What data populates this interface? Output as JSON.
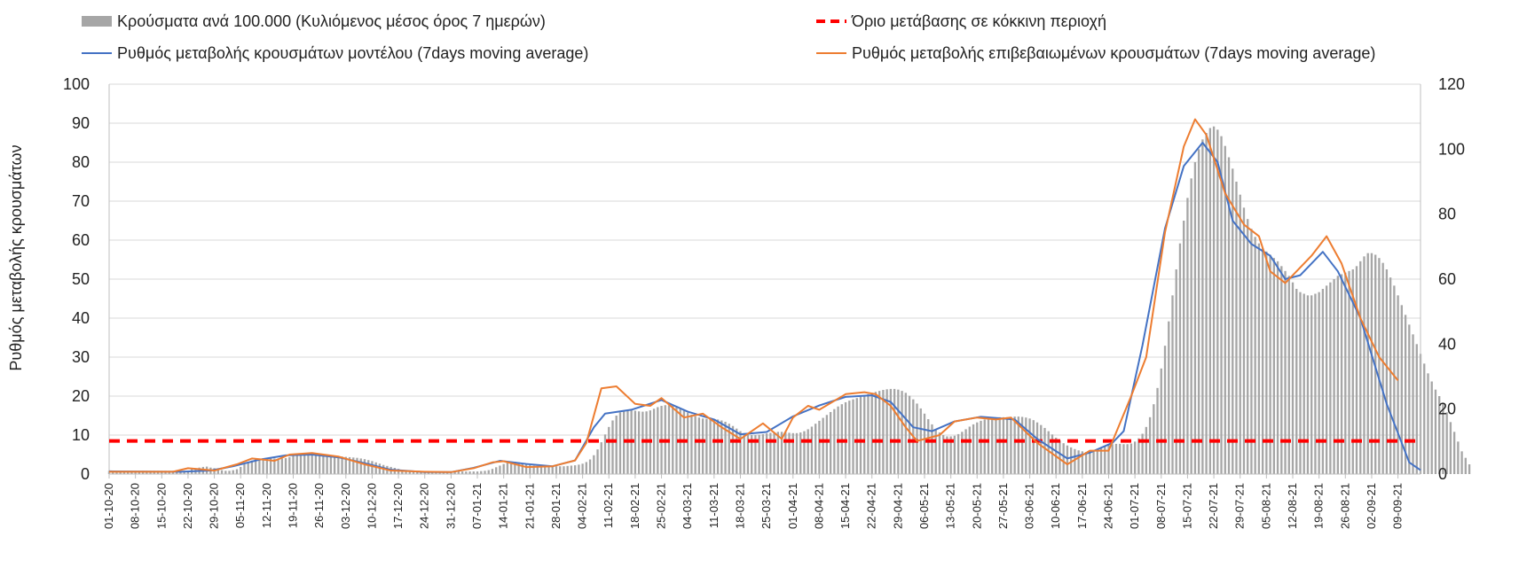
{
  "chart_data": {
    "type": "bar+line",
    "title": "",
    "ylabel": "Ρυθμός μεταβολής κρουσμάτων",
    "ylim": [
      0,
      100
    ],
    "y2lim": [
      0,
      120
    ],
    "yticks": [
      0,
      10,
      20,
      30,
      40,
      50,
      60,
      70,
      80,
      90,
      100
    ],
    "y2ticks": [
      0,
      20,
      40,
      60,
      80,
      100,
      120
    ],
    "grid": true,
    "legend_position": "top",
    "x_start": "2020-10-01",
    "x_end": "2021-09-15",
    "xtick_labels": [
      "01-10-20",
      "08-10-20",
      "15-10-20",
      "22-10-20",
      "29-10-20",
      "05-11-20",
      "12-11-20",
      "19-11-20",
      "26-11-20",
      "03-12-20",
      "10-12-20",
      "17-12-20",
      "24-12-20",
      "31-12-20",
      "07-01-21",
      "14-01-21",
      "21-01-21",
      "28-01-21",
      "04-02-21",
      "11-02-21",
      "18-02-21",
      "25-02-21",
      "04-03-21",
      "11-03-21",
      "18-03-21",
      "25-03-21",
      "01-04-21",
      "08-04-21",
      "15-04-21",
      "22-04-21",
      "29-04-21",
      "06-05-21",
      "13-05-21",
      "20-05-21",
      "27-05-21",
      "03-06-21",
      "10-06-21",
      "17-06-21",
      "24-06-21",
      "01-07-21",
      "08-07-21",
      "15-07-21",
      "22-07-21",
      "29-07-21",
      "05-08-21",
      "12-08-21",
      "19-08-21",
      "26-08-21",
      "02-09-21",
      "09-09-21"
    ],
    "series": [
      {
        "name": "Κρούσματα ανά 100.000 (Κυλιόμενος μέσος όρος 7 ημερών)",
        "kind": "bar",
        "axis": "y2",
        "color": "#a6a6a6",
        "start": "2020-10-01",
        "values": [
          1,
          1,
          1,
          1,
          1,
          1,
          1,
          1,
          1,
          1,
          1,
          1,
          1,
          1,
          1,
          1,
          1,
          1,
          1,
          1,
          1,
          1,
          1.5,
          1.8,
          2,
          2.2,
          2.3,
          2,
          1.8,
          1.5,
          1.2,
          1,
          1,
          1.2,
          1.5,
          2.2,
          3,
          3.6,
          4.2,
          4.6,
          4.8,
          4.9,
          5,
          4.9,
          4.8,
          4.7,
          4.8,
          4.9,
          5.2,
          5.6,
          5.9,
          6,
          6.1,
          6.2,
          6.2,
          6.1,
          6,
          5.9,
          5.8,
          5.7,
          5.6,
          5.5,
          5.4,
          5.3,
          5.2,
          5.1,
          5,
          4.8,
          4.6,
          4.3,
          4,
          3.6,
          3.2,
          2.8,
          2.5,
          2.2,
          1.9,
          1.6,
          1.3,
          1.1,
          1,
          0.9,
          0.8,
          0.8,
          0.8,
          0.8,
          0.8,
          0.8,
          0.8,
          0.8,
          0.8,
          0.8,
          0.8,
          0.8,
          0.8,
          0.8,
          0.8,
          0.8,
          0.8,
          0.9,
          1,
          1.2,
          1.6,
          2.1,
          2.6,
          3.1,
          3.5,
          3.8,
          3.8,
          3.6,
          3.3,
          3,
          2.8,
          2.6,
          2.5,
          2.4,
          2.4,
          2.4,
          2.4,
          2.4,
          2.4,
          2.4,
          2.5,
          2.6,
          2.7,
          2.9,
          3.2,
          3.7,
          4.5,
          5.8,
          7.6,
          9.8,
          12.2,
          14.5,
          16.5,
          18,
          19,
          19.4,
          19.6,
          19.6,
          19.5,
          19.3,
          19.2,
          19.3,
          19.6,
          20.1,
          20.6,
          21,
          21.2,
          21.2,
          21,
          20.6,
          20.1,
          19.5,
          18.9,
          18.3,
          17.8,
          17.4,
          17.1,
          17,
          17,
          16.9,
          16.8,
          16.5,
          16.1,
          15.5,
          14.8,
          14,
          13.2,
          12.6,
          12.2,
          12,
          12,
          12.1,
          12.3,
          12.5,
          12.7,
          12.9,
          13,
          13,
          12.9,
          12.7,
          12.6,
          12.6,
          12.8,
          13.2,
          13.8,
          14.6,
          15.5,
          16.4,
          17.3,
          18.2,
          19.1,
          20,
          20.8,
          21.5,
          22.1,
          22.6,
          23,
          23.4,
          23.8,
          24.2,
          24.6,
          25,
          25.3,
          25.6,
          25.9,
          26.1,
          26.2,
          26.2,
          26,
          25.6,
          25,
          24.1,
          23,
          21.7,
          20.2,
          18.6,
          16.9,
          15.3,
          13.9,
          12.8,
          12,
          11.6,
          11.6,
          11.8,
          12.3,
          13,
          13.8,
          14.6,
          15.3,
          15.9,
          16.4,
          16.8,
          17.1,
          17.3,
          17.4,
          17.5,
          17.5,
          17.5,
          17.6,
          17.7,
          17.7,
          17.6,
          17.4,
          17.1,
          16.6,
          15.9,
          15.1,
          14.2,
          13.2,
          12.2,
          11.2,
          10.3,
          9.5,
          8.8,
          8.2,
          7.7,
          7.3,
          7,
          6.8,
          6.8,
          7,
          7.5,
          8,
          8.5,
          8.9,
          9.2,
          9.3,
          9.3,
          9.2,
          9.2,
          9.4,
          10,
          11,
          12.4,
          14.5,
          17.5,
          21.5,
          26.5,
          32.5,
          39.5,
          47,
          55,
          63,
          71,
          78,
          85,
          91,
          96,
          100,
          103,
          105,
          106.5,
          107,
          106,
          104,
          101,
          97.5,
          94,
          90,
          86,
          82,
          78.5,
          75.5,
          73,
          71,
          69.5,
          68.5,
          67.5,
          66.5,
          65.5,
          64,
          62.5,
          61,
          59,
          57,
          56,
          55.5,
          55,
          55,
          55.5,
          56,
          57,
          58,
          59,
          60,
          61,
          61.5,
          62,
          62.5,
          63,
          64,
          65.5,
          67,
          68,
          68,
          67.5,
          66.5,
          65,
          63,
          60.5,
          58,
          55,
          52,
          49,
          46,
          43,
          40,
          37,
          34,
          31,
          28.5,
          26,
          24,
          22,
          19,
          16,
          13,
          10,
          7,
          5,
          3
        ]
      },
      {
        "name": "Όριο μετάβασης σε κόκκινη περιοχή",
        "kind": "threshold",
        "axis": "y",
        "color": "#ff0000",
        "value": 8.5
      },
      {
        "name": "Ρυθμός μεταβολής κρουσμάτων μοντέλου (7days moving average)",
        "kind": "line",
        "axis": "y",
        "color": "#4472c4",
        "points": [
          [
            "2020-10-01",
            0.7
          ],
          [
            "2020-10-20",
            0.6
          ],
          [
            "2020-10-28",
            0.9
          ],
          [
            "2020-11-03",
            2
          ],
          [
            "2020-11-10",
            3.7
          ],
          [
            "2020-11-17",
            4.8
          ],
          [
            "2020-11-24",
            5
          ],
          [
            "2020-12-01",
            4.3
          ],
          [
            "2020-12-08",
            2.8
          ],
          [
            "2020-12-15",
            1.1
          ],
          [
            "2020-12-24",
            0.5
          ],
          [
            "2020-12-31",
            0.5
          ],
          [
            "2021-01-06",
            1.6
          ],
          [
            "2021-01-13",
            3.4
          ],
          [
            "2021-01-20",
            2.6
          ],
          [
            "2021-01-27",
            2
          ],
          [
            "2021-02-02",
            3.5
          ],
          [
            "2021-02-07",
            12
          ],
          [
            "2021-02-10",
            15.5
          ],
          [
            "2021-02-17",
            16.5
          ],
          [
            "2021-02-25",
            19
          ],
          [
            "2021-03-04",
            16
          ],
          [
            "2021-03-11",
            14
          ],
          [
            "2021-03-18",
            10.2
          ],
          [
            "2021-03-25",
            10.8
          ],
          [
            "2021-04-01",
            14.8
          ],
          [
            "2021-04-08",
            17.6
          ],
          [
            "2021-04-15",
            19.8
          ],
          [
            "2021-04-22",
            20.2
          ],
          [
            "2021-04-27",
            18.5
          ],
          [
            "2021-05-03",
            12
          ],
          [
            "2021-05-08",
            11
          ],
          [
            "2021-05-14",
            13.5
          ],
          [
            "2021-05-21",
            14.7
          ],
          [
            "2021-05-30",
            14
          ],
          [
            "2021-06-05",
            9
          ],
          [
            "2021-06-13",
            4
          ],
          [
            "2021-06-19",
            5.5
          ],
          [
            "2021-06-25",
            8
          ],
          [
            "2021-06-28",
            11
          ],
          [
            "2021-07-03",
            33
          ],
          [
            "2021-07-09",
            63
          ],
          [
            "2021-07-14",
            79
          ],
          [
            "2021-07-19",
            85
          ],
          [
            "2021-07-23",
            80
          ],
          [
            "2021-07-27",
            65
          ],
          [
            "2021-08-01",
            59
          ],
          [
            "2021-08-06",
            56
          ],
          [
            "2021-08-10",
            50
          ],
          [
            "2021-08-14",
            51
          ],
          [
            "2021-08-20",
            57
          ],
          [
            "2021-08-24",
            52
          ],
          [
            "2021-08-30",
            40
          ],
          [
            "2021-09-06",
            18
          ],
          [
            "2021-09-12",
            3
          ],
          [
            "2021-09-15",
            1
          ]
        ]
      },
      {
        "name": "Ρυθμός μεταβολής επιβεβαιωμένων κρουσμάτων (7days moving average)",
        "kind": "line",
        "axis": "y",
        "color": "#ed7d31",
        "points": [
          [
            "2020-10-01",
            0.6
          ],
          [
            "2020-10-18",
            0.6
          ],
          [
            "2020-10-22",
            1.5
          ],
          [
            "2020-10-29",
            0.9
          ],
          [
            "2020-11-04",
            2.5
          ],
          [
            "2020-11-08",
            4
          ],
          [
            "2020-11-14",
            3.4
          ],
          [
            "2020-11-18",
            5
          ],
          [
            "2020-11-24",
            5.4
          ],
          [
            "2020-12-01",
            4.5
          ],
          [
            "2020-12-08",
            2.5
          ],
          [
            "2020-12-15",
            0.9
          ],
          [
            "2020-12-24",
            0.6
          ],
          [
            "2020-12-31",
            0.5
          ],
          [
            "2021-01-06",
            1.5
          ],
          [
            "2021-01-11",
            3
          ],
          [
            "2021-01-14",
            3.3
          ],
          [
            "2021-01-20",
            1.8
          ],
          [
            "2021-01-27",
            2
          ],
          [
            "2021-02-02",
            3.5
          ],
          [
            "2021-02-05",
            8
          ],
          [
            "2021-02-09",
            22
          ],
          [
            "2021-02-13",
            22.5
          ],
          [
            "2021-02-18",
            18
          ],
          [
            "2021-02-22",
            17.5
          ],
          [
            "2021-02-25",
            19.5
          ],
          [
            "2021-03-03",
            14.5
          ],
          [
            "2021-03-08",
            15.5
          ],
          [
            "2021-03-13",
            12
          ],
          [
            "2021-03-18",
            9
          ],
          [
            "2021-03-21",
            11
          ],
          [
            "2021-03-24",
            13
          ],
          [
            "2021-03-29",
            9
          ],
          [
            "2021-04-01",
            14.5
          ],
          [
            "2021-04-05",
            17.5
          ],
          [
            "2021-04-08",
            16.5
          ],
          [
            "2021-04-15",
            20.5
          ],
          [
            "2021-04-20",
            21
          ],
          [
            "2021-04-23",
            20.5
          ],
          [
            "2021-04-27",
            17.5
          ],
          [
            "2021-05-01",
            12
          ],
          [
            "2021-05-04",
            8.5
          ],
          [
            "2021-05-10",
            10
          ],
          [
            "2021-05-14",
            13.5
          ],
          [
            "2021-05-20",
            14.5
          ],
          [
            "2021-05-25",
            14
          ],
          [
            "2021-05-29",
            14.5
          ],
          [
            "2021-06-05",
            8
          ],
          [
            "2021-06-13",
            2.5
          ],
          [
            "2021-06-19",
            6
          ],
          [
            "2021-06-24",
            6
          ],
          [
            "2021-06-30",
            20
          ],
          [
            "2021-07-04",
            30
          ],
          [
            "2021-07-09",
            62
          ],
          [
            "2021-07-14",
            84
          ],
          [
            "2021-07-17",
            91
          ],
          [
            "2021-07-20",
            87
          ],
          [
            "2021-07-25",
            72
          ],
          [
            "2021-07-30",
            64
          ],
          [
            "2021-08-03",
            61
          ],
          [
            "2021-08-06",
            52
          ],
          [
            "2021-08-10",
            49
          ],
          [
            "2021-08-14",
            53
          ],
          [
            "2021-08-17",
            56
          ],
          [
            "2021-08-21",
            61
          ],
          [
            "2021-08-25",
            54
          ],
          [
            "2021-08-30",
            40
          ],
          [
            "2021-09-04",
            30
          ],
          [
            "2021-09-09",
            24
          ]
        ]
      }
    ]
  }
}
